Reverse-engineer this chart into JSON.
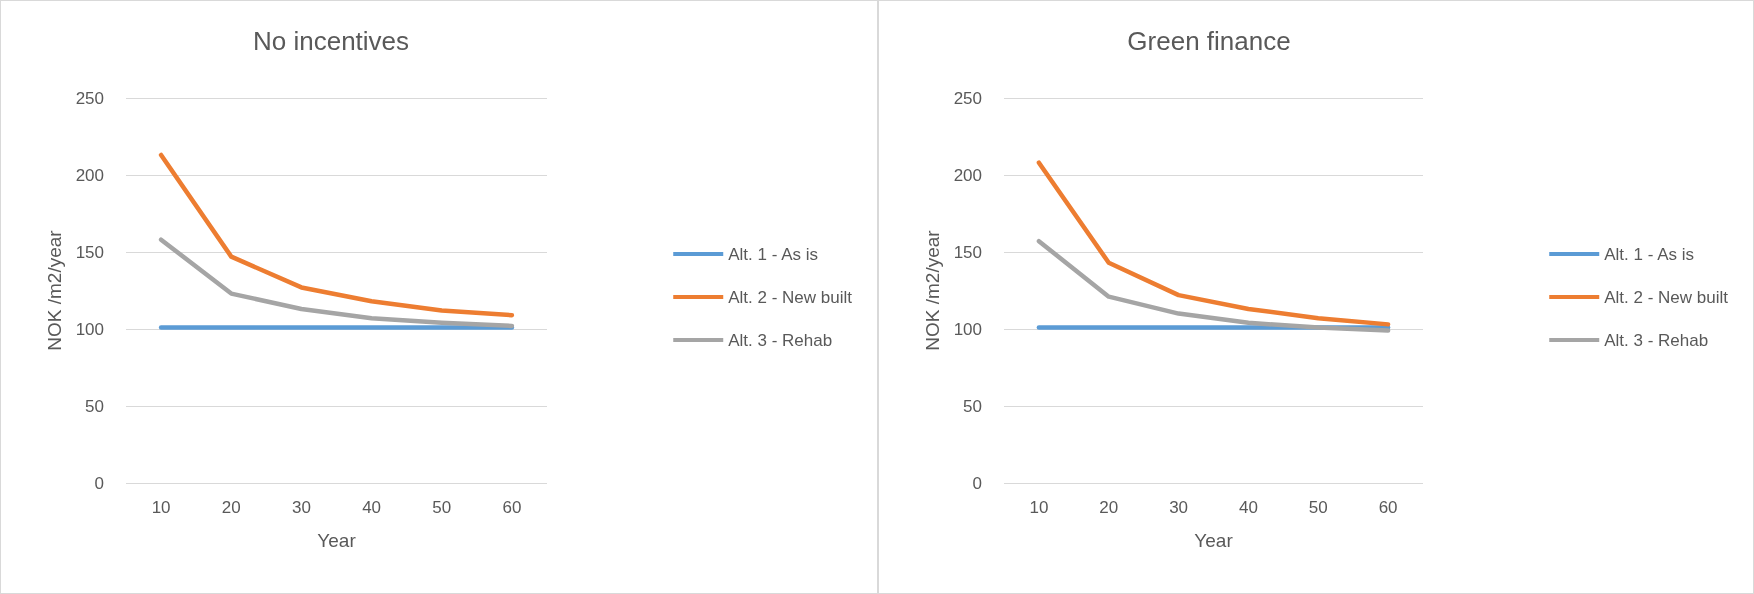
{
  "chart_data": [
    {
      "type": "line",
      "title": "No incentives",
      "xlabel": "Year",
      "ylabel": "NOK /m2/year",
      "categories": [
        "10",
        "20",
        "30",
        "40",
        "50",
        "60"
      ],
      "ylim": [
        0,
        250
      ],
      "yticks": [
        0,
        50,
        100,
        150,
        200,
        250
      ],
      "grid": "y",
      "legend": "right",
      "marker": "none",
      "line_style": "solid",
      "series": [
        {
          "name": "Alt. 1 - As is",
          "color": "#5b9bd5",
          "values": [
            101,
            101,
            101,
            101,
            101,
            101
          ]
        },
        {
          "name": "Alt. 2 - New built",
          "color": "#ed7d31",
          "values": [
            213,
            147,
            127,
            118,
            112,
            109
          ]
        },
        {
          "name": "Alt. 3 - Rehab",
          "color": "#a5a5a5",
          "values": [
            158,
            123,
            113,
            107,
            104,
            102
          ]
        }
      ]
    },
    {
      "type": "line",
      "title": "Green finance",
      "xlabel": "Year",
      "ylabel": "NOK /m2/year",
      "categories": [
        "10",
        "20",
        "30",
        "40",
        "50",
        "60"
      ],
      "ylim": [
        0,
        250
      ],
      "yticks": [
        0,
        50,
        100,
        150,
        200,
        250
      ],
      "grid": "y",
      "legend": "right",
      "marker": "none",
      "line_style": "solid",
      "series": [
        {
          "name": "Alt. 1 - As is",
          "color": "#5b9bd5",
          "values": [
            101,
            101,
            101,
            101,
            101,
            101
          ]
        },
        {
          "name": "Alt. 2 - New built",
          "color": "#ed7d31",
          "values": [
            208,
            143,
            122,
            113,
            107,
            103
          ]
        },
        {
          "name": "Alt. 3 - Rehab",
          "color": "#a5a5a5",
          "values": [
            157,
            121,
            110,
            104,
            101,
            99
          ]
        }
      ]
    }
  ]
}
